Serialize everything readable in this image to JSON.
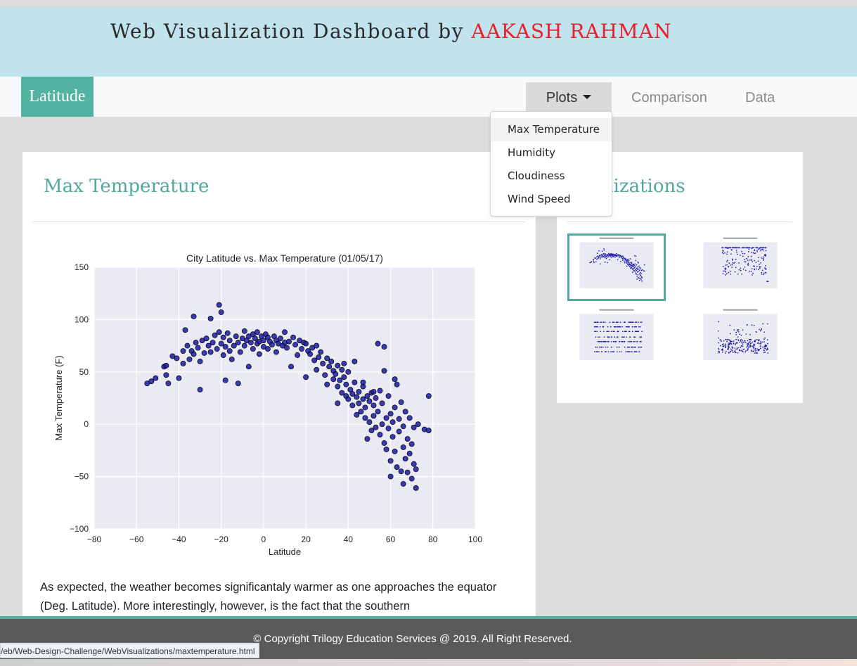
{
  "header": {
    "title_prefix": "Web Visualization Dashboard by ",
    "author": "AAKASH RAHMAN",
    "author_color": "#e8202a",
    "background": "#c0e3ed"
  },
  "navbar": {
    "brand": "Latitude",
    "items": [
      {
        "label": "Plots",
        "icon": "caret-down-icon",
        "active": true
      },
      {
        "label": "Comparison"
      },
      {
        "label": "Data"
      }
    ]
  },
  "dropdown": {
    "items": [
      {
        "label": "Max Temperature",
        "active": true
      },
      {
        "label": "Humidity"
      },
      {
        "label": "Cloudiness"
      },
      {
        "label": "Wind Speed"
      }
    ]
  },
  "main": {
    "title": "Max Temperature",
    "description": "As expected, the weather becomes significantaly warmer as one approaches the equator (Deg. Latitude). More interestingly, however, is the fact that the southern"
  },
  "sidebar": {
    "title_visible": "ualizations",
    "thumbnails": [
      {
        "name": "max-temperature",
        "selected": true
      },
      {
        "name": "humidity"
      },
      {
        "name": "cloudiness"
      },
      {
        "name": "wind-speed"
      }
    ]
  },
  "footer": {
    "text": "© Copyright Trilogy Education Services @ 2019. All Right Reserved."
  },
  "statusbar": {
    "url": "/eb/Web-Design-Challenge/WebVisualizations/maxtemperature.html"
  },
  "colors": {
    "accent": "#52b3a1",
    "heading": "#52a89a",
    "marker": "#1a1aa6"
  },
  "chart_data": {
    "type": "scatter",
    "title": "City Latitude vs. Max Temperature (01/05/17)",
    "xlabel": "Latitude",
    "ylabel": "Max Temperature (F)",
    "xlim": [
      -80,
      100
    ],
    "ylim": [
      -100,
      150
    ],
    "xticks": [
      -80,
      -60,
      -40,
      -20,
      0,
      20,
      40,
      60,
      80,
      100
    ],
    "yticks": [
      -100,
      -50,
      0,
      50,
      100,
      150
    ],
    "grid": true,
    "series": [
      {
        "color": "#1a1aa6",
        "points": [
          [
            -55,
            39
          ],
          [
            -53,
            41
          ],
          [
            -51,
            44
          ],
          [
            -47,
            55
          ],
          [
            -46,
            56
          ],
          [
            -46,
            47
          ],
          [
            -45,
            39
          ],
          [
            -43,
            65
          ],
          [
            -41,
            63
          ],
          [
            -40,
            44
          ],
          [
            -38,
            70
          ],
          [
            -38,
            58
          ],
          [
            -37,
            90
          ],
          [
            -36,
            75
          ],
          [
            -35,
            62
          ],
          [
            -34,
            70
          ],
          [
            -33,
            67
          ],
          [
            -33,
            103
          ],
          [
            -32,
            78
          ],
          [
            -31,
            73
          ],
          [
            -30,
            60
          ],
          [
            -30,
            33
          ],
          [
            -29,
            80
          ],
          [
            -28,
            68
          ],
          [
            -27,
            82
          ],
          [
            -26,
            75
          ],
          [
            -25,
            69
          ],
          [
            -25,
            101
          ],
          [
            -24,
            78
          ],
          [
            -23,
            85
          ],
          [
            -22,
            72
          ],
          [
            -21,
            88
          ],
          [
            -21,
            114
          ],
          [
            -20,
            107
          ],
          [
            -20,
            77
          ],
          [
            -19,
            83
          ],
          [
            -19,
            66
          ],
          [
            -18,
            42
          ],
          [
            -18,
            74
          ],
          [
            -17,
            87
          ],
          [
            -16,
            70
          ],
          [
            -16,
            80
          ],
          [
            -15,
            62
          ],
          [
            -14,
            75
          ],
          [
            -13,
            84
          ],
          [
            -12,
            39
          ],
          [
            -12,
            78
          ],
          [
            -11,
            69
          ],
          [
            -10,
            82
          ],
          [
            -9,
            89
          ],
          [
            -9,
            75
          ],
          [
            -8,
            80
          ],
          [
            -7,
            84
          ],
          [
            -7,
            55
          ],
          [
            -6,
            78
          ],
          [
            -5,
            86
          ],
          [
            -5,
            72
          ],
          [
            -4,
            82
          ],
          [
            -3,
            77
          ],
          [
            -3,
            88
          ],
          [
            -2,
            67
          ],
          [
            -2,
            79
          ],
          [
            -1,
            84
          ],
          [
            0,
            80
          ],
          [
            0,
            74
          ],
          [
            1,
            86
          ],
          [
            2,
            83
          ],
          [
            2,
            72
          ],
          [
            3,
            79
          ],
          [
            4,
            76
          ],
          [
            5,
            84
          ],
          [
            6,
            80
          ],
          [
            6,
            69
          ],
          [
            7,
            77
          ],
          [
            8,
            82
          ],
          [
            9,
            75
          ],
          [
            10,
            78
          ],
          [
            10,
            88
          ],
          [
            11,
            73
          ],
          [
            12,
            79
          ],
          [
            13,
            55
          ],
          [
            14,
            83
          ],
          [
            15,
            76
          ],
          [
            16,
            66
          ],
          [
            17,
            80
          ],
          [
            18,
            72
          ],
          [
            19,
            78
          ],
          [
            20,
            77
          ],
          [
            20,
            45
          ],
          [
            21,
            70
          ],
          [
            22,
            67
          ],
          [
            23,
            73
          ],
          [
            24,
            61
          ],
          [
            25,
            75
          ],
          [
            25,
            52
          ],
          [
            26,
            64
          ],
          [
            27,
            69
          ],
          [
            28,
            58
          ],
          [
            29,
            47
          ],
          [
            30,
            63
          ],
          [
            30,
            38
          ],
          [
            31,
            55
          ],
          [
            32,
            60
          ],
          [
            33,
            43
          ],
          [
            33,
            51
          ],
          [
            34,
            48
          ],
          [
            35,
            56
          ],
          [
            35,
            36
          ],
          [
            36,
            42
          ],
          [
            37,
            30
          ],
          [
            37,
            52
          ],
          [
            38,
            45
          ],
          [
            39,
            27
          ],
          [
            39,
            38
          ],
          [
            40,
            24
          ],
          [
            40,
            50
          ],
          [
            41,
            33
          ],
          [
            42,
            29
          ],
          [
            42,
            18
          ],
          [
            43,
            40
          ],
          [
            44,
            26
          ],
          [
            44,
            9
          ],
          [
            45,
            31
          ],
          [
            45,
            20
          ],
          [
            46,
            12
          ],
          [
            47,
            24
          ],
          [
            47,
            36
          ],
          [
            48,
            6
          ],
          [
            48,
            16
          ],
          [
            49,
            27
          ],
          [
            49,
            -14
          ],
          [
            50,
            22
          ],
          [
            50,
            2
          ],
          [
            51,
            30
          ],
          [
            51,
            -6
          ],
          [
            52,
            18
          ],
          [
            52,
            8
          ],
          [
            53,
            -3
          ],
          [
            53,
            25
          ],
          [
            54,
            77
          ],
          [
            54,
            12
          ],
          [
            55,
            -10
          ],
          [
            55,
            32
          ],
          [
            56,
            0
          ],
          [
            56,
            20
          ],
          [
            57,
            -18
          ],
          [
            57,
            74
          ],
          [
            58,
            6
          ],
          [
            58,
            -24
          ],
          [
            59,
            -4
          ],
          [
            59,
            27
          ],
          [
            60,
            10
          ],
          [
            60,
            -35
          ],
          [
            61,
            2
          ],
          [
            61,
            -12
          ],
          [
            62,
            -26
          ],
          [
            62,
            16
          ],
          [
            63,
            -41
          ],
          [
            63,
            38
          ],
          [
            64,
            -7
          ],
          [
            64,
            5
          ],
          [
            65,
            -45
          ],
          [
            65,
            21
          ],
          [
            66,
            -22
          ],
          [
            66,
            -2
          ],
          [
            67,
            -33
          ],
          [
            67,
            12
          ],
          [
            68,
            -46
          ],
          [
            68,
            -14
          ],
          [
            69,
            -28
          ],
          [
            69,
            6
          ],
          [
            70,
            -52
          ],
          [
            70,
            -19
          ],
          [
            71,
            -38
          ],
          [
            71,
            -3
          ],
          [
            72,
            -61
          ],
          [
            72,
            -43
          ],
          [
            73,
            0
          ],
          [
            76,
            -5
          ],
          [
            78,
            -6
          ],
          [
            78,
            27
          ],
          [
            62,
            43
          ],
          [
            57,
            51
          ],
          [
            52,
            31
          ],
          [
            47,
            40
          ],
          [
            43,
            60
          ],
          [
            38,
            58
          ],
          [
            35,
            20
          ],
          [
            60,
            -50
          ],
          [
            66,
            -57
          ]
        ]
      }
    ]
  }
}
